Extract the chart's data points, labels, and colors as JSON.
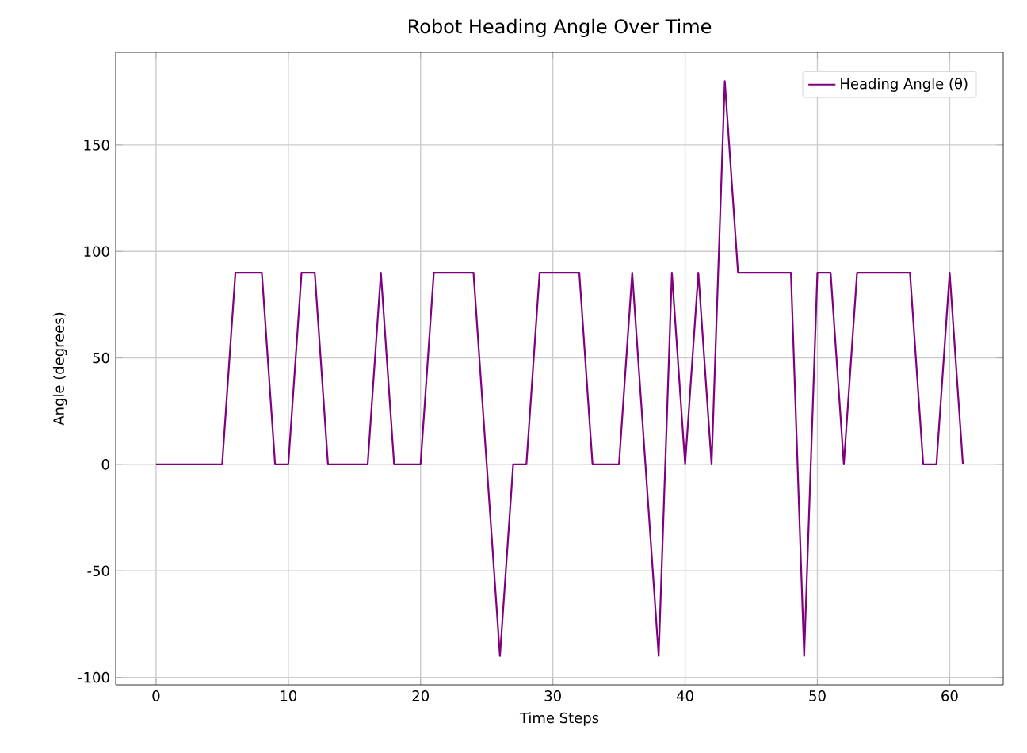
{
  "chart_data": {
    "type": "line",
    "title": "Robot Heading Angle Over Time",
    "xlabel": "Time Steps",
    "ylabel": "Angle (degrees)",
    "x": [
      0,
      1,
      2,
      3,
      4,
      5,
      6,
      7,
      8,
      9,
      10,
      11,
      12,
      13,
      14,
      15,
      16,
      17,
      18,
      19,
      20,
      21,
      22,
      23,
      24,
      25,
      26,
      27,
      28,
      29,
      30,
      31,
      32,
      33,
      34,
      35,
      36,
      37,
      38,
      39,
      40,
      41,
      42,
      43,
      44,
      45,
      46,
      47,
      48,
      49,
      50,
      51,
      52,
      53,
      54,
      55,
      56,
      57,
      58,
      59,
      60,
      61
    ],
    "series": [
      {
        "name": "Heading Angle (θ)",
        "color": "#800080",
        "values": [
          0,
          0,
          0,
          0,
          0,
          0,
          90,
          90,
          90,
          0,
          0,
          90,
          90,
          0,
          0,
          0,
          0,
          90,
          0,
          0,
          0,
          90,
          90,
          90,
          90,
          0,
          -90,
          0,
          0,
          90,
          90,
          90,
          90,
          0,
          0,
          0,
          90,
          0,
          -90,
          90,
          0,
          90,
          0,
          180,
          90,
          90,
          90,
          90,
          90,
          -90,
          90,
          90,
          0,
          90,
          90,
          90,
          90,
          90,
          0,
          0,
          90,
          0
        ]
      }
    ],
    "xlim": [
      -3.05,
      64.05
    ],
    "ylim": [
      -103.5,
      193.5
    ],
    "xticks": [
      0,
      10,
      20,
      30,
      40,
      50,
      60
    ],
    "yticks": [
      -100,
      -50,
      0,
      50,
      100,
      150
    ],
    "grid": true,
    "legend": "top right",
    "marker": "none",
    "line_style": "solid"
  }
}
